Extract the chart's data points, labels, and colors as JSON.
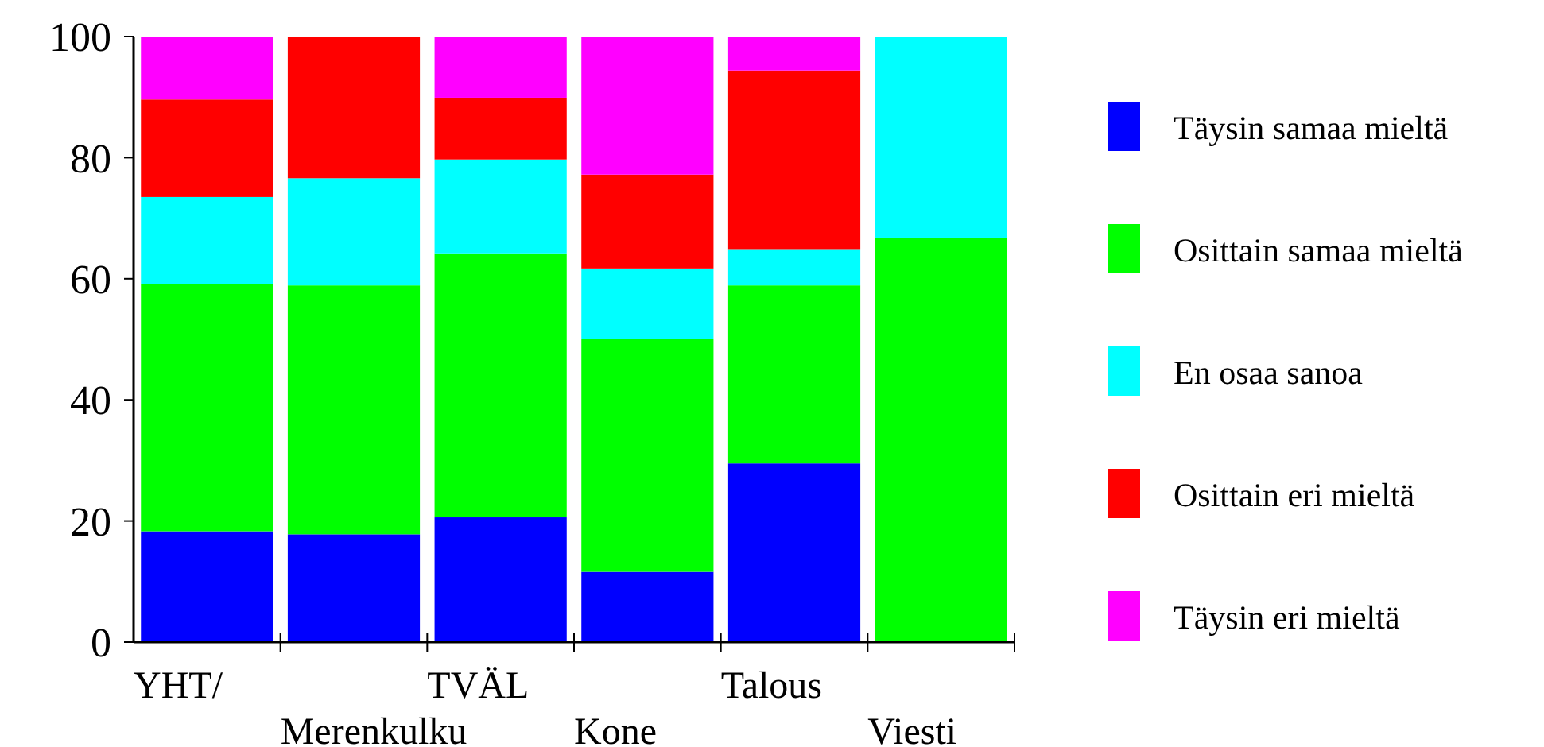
{
  "chart_data": {
    "type": "bar",
    "stacked": true,
    "categories": [
      "YHT/",
      "Merenkulku",
      "TVÄL",
      "Kone",
      "Talous",
      "Viesti"
    ],
    "series": [
      {
        "name": "Täysin samaa mieltä",
        "color": "#0000ff",
        "values": [
          18.3,
          17.8,
          20.6,
          11.6,
          29.5,
          0
        ]
      },
      {
        "name": "Osittain samaa mieltä",
        "color": "#00ff00",
        "values": [
          40.8,
          41.1,
          43.6,
          38.5,
          29.4,
          66.8
        ]
      },
      {
        "name": "En osaa sanoa",
        "color": "#00ffff",
        "values": [
          14.4,
          17.7,
          15.5,
          11.6,
          6.0,
          33.2
        ]
      },
      {
        "name": "Osittain eri mieltä",
        "color": "#ff0000",
        "values": [
          16.1,
          23.4,
          10.2,
          15.5,
          29.5,
          0
        ]
      },
      {
        "name": "Täysin eri mieltä",
        "color": "#ff00ff",
        "values": [
          10.4,
          0,
          10.1,
          22.8,
          5.6,
          0
        ]
      }
    ],
    "ylim": [
      0,
      100
    ],
    "yticks": [
      0,
      20,
      40,
      60,
      80,
      100
    ],
    "grid": false,
    "legend": "right"
  }
}
